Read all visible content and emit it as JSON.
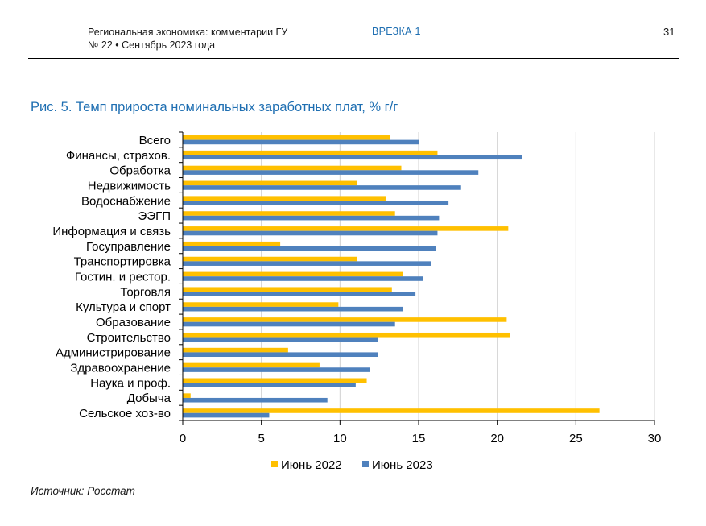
{
  "header": {
    "line1": "Региональная экономика: комментарии ГУ",
    "line2": "№ 22 • Сентябрь 2023 года",
    "section": "ВРЕЗКА 1",
    "page_number": "31"
  },
  "figure_title": "Рис. 5. Темп прироста номинальных заработных плат, % г/г",
  "source": "Источник: Росстат",
  "chart_data": {
    "type": "bar",
    "orientation": "horizontal",
    "categories": [
      "Всего",
      "Финансы, страхов.",
      "Обработка",
      "Недвижимость",
      "Водоснабжение",
      "ЭЭГП",
      "Информация и связь",
      "Госуправление",
      "Транспортировка",
      "Гостин. и рестор.",
      "Торговля",
      "Культура и спорт",
      "Образование",
      "Строительство",
      "Администрирование",
      "Здравоохранение",
      "Наука и проф.",
      "Добыча",
      "Сельское хоз-во"
    ],
    "series": [
      {
        "name": "Июнь 2022",
        "color": "#ffc000",
        "values": [
          13.2,
          16.2,
          13.9,
          11.1,
          12.9,
          13.5,
          20.7,
          6.2,
          11.1,
          14.0,
          13.3,
          9.9,
          20.6,
          20.8,
          6.7,
          8.7,
          11.7,
          0.5,
          26.5
        ]
      },
      {
        "name": "Июнь 2023",
        "color": "#4f81bd",
        "values": [
          15.0,
          21.6,
          18.8,
          17.7,
          16.9,
          16.3,
          16.2,
          16.1,
          15.8,
          15.3,
          14.8,
          14.0,
          13.5,
          12.4,
          12.4,
          11.9,
          11.0,
          9.2,
          5.5
        ]
      }
    ],
    "xlim": [
      0,
      30
    ],
    "xticks": [
      "0",
      "5",
      "10",
      "15",
      "20",
      "25",
      "30"
    ],
    "grid": true,
    "legend_position": "bottom"
  }
}
